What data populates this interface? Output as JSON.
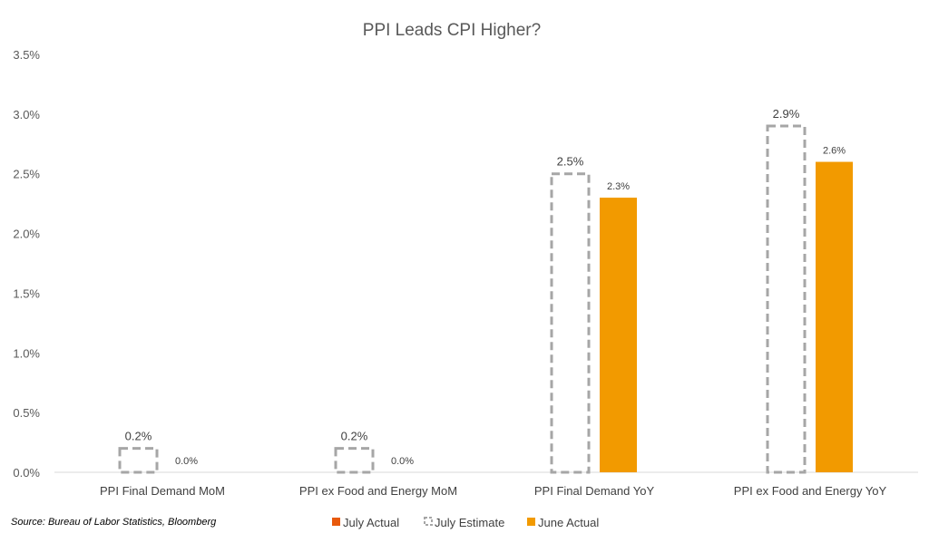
{
  "chart_data": {
    "type": "bar",
    "title": "PPI Leads CPI Higher?",
    "categories": [
      "PPI Final Demand MoM",
      "PPI ex Food and Energy MoM",
      "PPI Final Demand YoY",
      "PPI ex Food and Energy YoY"
    ],
    "series": [
      {
        "name": "July Actual",
        "values": [
          null,
          null,
          null,
          null
        ],
        "labels": [
          "",
          "",
          "",
          ""
        ]
      },
      {
        "name": "July Estimate",
        "values": [
          0.2,
          0.2,
          2.5,
          2.9
        ],
        "labels": [
          "0.2%",
          "0.2%",
          "2.5%",
          "2.9%"
        ]
      },
      {
        "name": "June Actual",
        "values": [
          0.0,
          0.0,
          2.3,
          2.6
        ],
        "labels": [
          "0.0%",
          "0.0%",
          "2.3%",
          "2.6%"
        ]
      }
    ],
    "y_ticks": [
      "0.0%",
      "0.5%",
      "1.0%",
      "1.5%",
      "2.0%",
      "2.5%",
      "3.0%",
      "3.5%"
    ],
    "ylim": [
      0,
      3.5
    ],
    "grid": false,
    "legend_placement": "bottom-center",
    "colors": {
      "July Actual": "#E8590C",
      "July Estimate": "#A6A6A6",
      "June Actual": "#F29A00"
    },
    "source": "Source: Bureau of Labor Statistics, Bloomberg"
  }
}
